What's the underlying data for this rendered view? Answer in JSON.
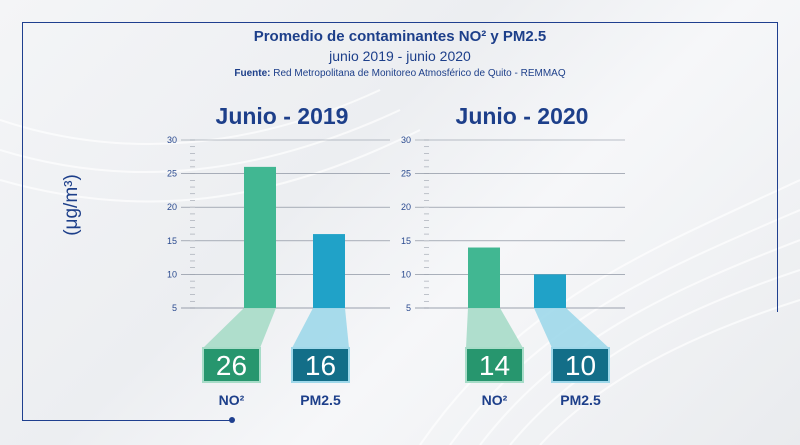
{
  "header": {
    "title": "Promedio de contaminantes NO² y PM2.5",
    "subtitle": "junio 2019 - junio 2020",
    "source_label": "Fuente:",
    "source_text": " Red Metropolitana de Monitoreo Atmosférico de Quito - REMMAQ"
  },
  "unit_label": "(μg/m³)",
  "colors": {
    "no2": "#41b792",
    "no2_light": "#a7dcc8",
    "no2_box": "#27966e",
    "pm25": "#20a2c8",
    "pm25_light": "#9fd8ea",
    "pm25_box": "#136e88",
    "accent": "#1d3f8a"
  },
  "chart_data": [
    {
      "type": "bar",
      "title": "Junio - 2019",
      "categories": [
        "NO²",
        "PM2.5"
      ],
      "values": [
        26,
        16
      ],
      "value_labels": [
        "26",
        "16"
      ],
      "ylim": [
        5,
        30
      ],
      "yticks": [
        "5",
        "10",
        "15",
        "20",
        "25",
        "30"
      ],
      "grid": true
    },
    {
      "type": "bar",
      "title": "Junio - 2020",
      "categories": [
        "NO²",
        "PM2.5"
      ],
      "values": [
        14,
        10
      ],
      "value_labels": [
        "14",
        "10"
      ],
      "ylim": [
        5,
        30
      ],
      "yticks": [
        "5",
        "10",
        "15",
        "20",
        "25",
        "30"
      ],
      "grid": true
    }
  ]
}
